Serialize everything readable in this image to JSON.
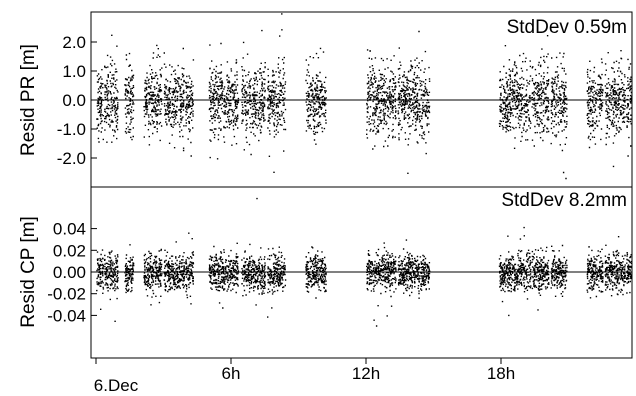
{
  "chart_data": [
    {
      "type": "scatter",
      "ylabel": "Resid PR [m]",
      "annotation": "StdDev 0.59m",
      "ylim": [
        -3.0,
        3.0
      ],
      "yticks": [
        2.0,
        1.0,
        0.0,
        -1.0,
        -2.0
      ],
      "ytick_labels": [
        "2.0",
        "1.0",
        "0.0",
        "-1.0",
        "-2.0"
      ],
      "zero_line": true,
      "std_dev": 0.59,
      "xlim": [
        0,
        24
      ],
      "segments": [
        [
          0,
          1.3
        ],
        [
          1.8,
          2.3
        ],
        [
          3.2,
          4.8
        ],
        [
          5.0,
          6.6
        ],
        [
          7.8,
          9.2
        ],
        [
          9.6,
          11.2
        ],
        [
          12.0,
          14.0
        ],
        [
          15.0,
          16.8
        ],
        [
          17.2,
          19.0
        ],
        [
          22.0,
          23.4
        ],
        [
          23.6,
          25.2
        ],
        [
          25.5,
          26.6
        ],
        [
          27.8,
          28.5
        ],
        [
          29.0,
          31.2
        ],
        [
          31.5,
          32.0
        ],
        [
          32.3,
          33.0
        ]
      ],
      "scale": {
        "hours_per_unit": 0.7
      }
    },
    {
      "type": "scatter",
      "ylabel": "Resid CP [m]",
      "annotation": "StdDev 8.2mm",
      "ylim": [
        -0.05,
        0.05
      ],
      "yticks": [
        0.04,
        0.02,
        0.0,
        -0.02,
        -0.04
      ],
      "ytick_labels": [
        "0.04",
        "0.02",
        "0.00",
        "-0.02",
        "-0.04"
      ],
      "zero_line": true,
      "std_dev": 0.0082,
      "xlim": [
        0,
        24
      ]
    }
  ],
  "x_axis": {
    "ticks": [
      0,
      6,
      12,
      18
    ],
    "tick_labels": [
      "6.Dec",
      "6h",
      "12h",
      "18h"
    ]
  }
}
